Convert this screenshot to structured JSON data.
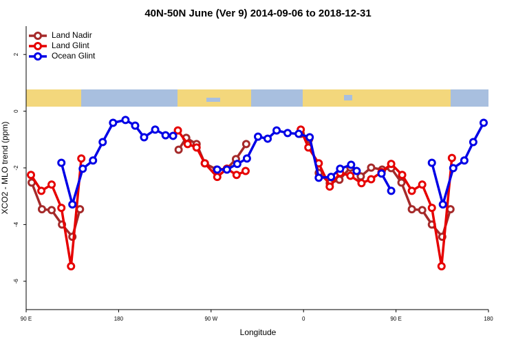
{
  "chart_data": {
    "type": "line",
    "title": "40N-50N June (Ver 9)   2014-09-06 to 2018-12-31",
    "x_label": "Longitude",
    "y_label": "XCO2 - MLO trend (ppm)",
    "xlim": [
      90,
      540
    ],
    "xticks": [
      {
        "value": 90,
        "label": "90 E"
      },
      {
        "value": 180,
        "label": "180"
      },
      {
        "value": 270,
        "label": "90 W"
      },
      {
        "value": 360,
        "label": "0"
      },
      {
        "value": 450,
        "label": "90 E"
      },
      {
        "value": 540,
        "label": "180"
      }
    ],
    "ylim": [
      -7,
      3
    ],
    "yticks": [
      -6,
      -4,
      -2,
      0,
      2
    ],
    "legend": "top-left",
    "series": [
      {
        "name": "Land Nadir",
        "color": "#a52a2a",
        "x": [
          95.4,
          105.4,
          114.8,
          124.9,
          135.0,
          142.4,
          null,
          238.4,
          245.8,
          255.9,
          263.9,
          275.4,
          285.4,
          294.2,
          304.2,
          null,
          357.3,
          365.4,
          374.8,
          385.5,
          394.9,
          405.6,
          415.7,
          425.8,
          436.5,
          445.3,
          455.3,
          465.4,
          475.5,
          484.9,
          495.0,
          503.0
        ],
        "values": [
          -2.52,
          -3.46,
          -3.49,
          -4.0,
          -4.43,
          -3.46,
          null,
          -1.36,
          -0.94,
          -1.16,
          -1.84,
          -2.06,
          -2.03,
          -1.69,
          -1.16,
          null,
          -0.8,
          -0.99,
          -2.18,
          -2.54,
          -2.42,
          -1.99,
          -2.3,
          -1.99,
          -2.06,
          -2.01,
          -2.52,
          -3.46,
          -3.49,
          -4.0,
          -4.43,
          -3.46
        ]
      },
      {
        "name": "Land Glint",
        "color": "#e60000",
        "x": [
          94.7,
          104.8,
          114.8,
          124.3,
          133.7,
          143.7,
          null,
          237.7,
          247.2,
          255.9,
          263.9,
          276.0,
          285.4,
          294.8,
          303.6,
          null,
          357.3,
          364.7,
          374.8,
          385.5,
          395.6,
          405.6,
          416.4,
          425.8,
          435.9,
          445.3,
          456.0,
          465.4,
          475.5,
          484.9,
          494.3,
          504.4
        ],
        "values": [
          -2.25,
          -2.81,
          -2.59,
          -3.41,
          -5.47,
          -1.67,
          null,
          -0.68,
          -1.16,
          -1.28,
          -1.84,
          -2.32,
          -2.03,
          -2.25,
          -2.11,
          null,
          -0.65,
          -1.28,
          -1.84,
          -2.66,
          -2.18,
          -2.28,
          -2.54,
          -2.4,
          -2.15,
          -1.86,
          -2.25,
          -2.81,
          -2.59,
          -3.41,
          -5.47,
          -1.65
        ]
      },
      {
        "name": "Ocean Glint",
        "color": "#0000e6",
        "x": [
          124.3,
          135.0,
          145.1,
          155.1,
          164.5,
          174.6,
          186.7,
          196.1,
          204.8,
          215.6,
          225.7,
          233.0,
          null,
          276.0,
          285.4,
          295.5,
          304.9,
          315.7,
          325.1,
          333.8,
          344.5,
          355.3,
          366.0,
          374.8,
          386.8,
          395.6,
          406.3,
          411.7,
          null,
          435.9,
          445.3,
          null,
          484.9,
          495.6,
          505.7,
          516.5,
          525.2,
          535.3
        ],
        "values": [
          -1.82,
          -3.29,
          -2.03,
          -1.74,
          -1.09,
          -0.41,
          -0.31,
          -0.51,
          -0.92,
          -0.65,
          -0.85,
          -0.87,
          null,
          -2.06,
          -2.06,
          -1.86,
          -1.67,
          -0.9,
          -0.97,
          -0.68,
          -0.77,
          -0.8,
          -0.92,
          -2.35,
          -2.32,
          -2.03,
          -1.89,
          -2.11,
          null,
          -2.2,
          -2.81,
          null,
          -1.82,
          -3.29,
          -2.01,
          -1.74,
          -1.09,
          -0.41
        ]
      }
    ]
  }
}
